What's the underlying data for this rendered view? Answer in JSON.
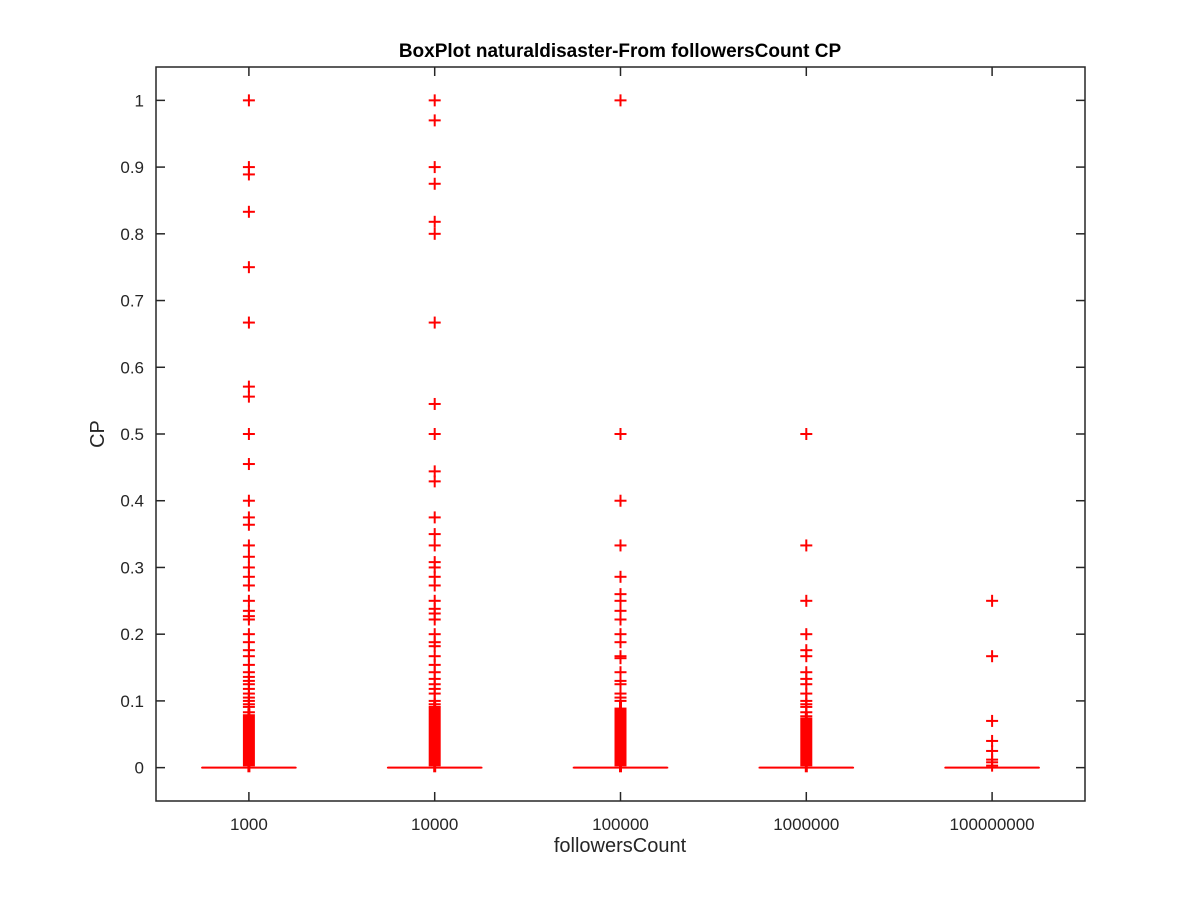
{
  "chart_data": {
    "type": "boxplot",
    "title": "BoxPlot naturaldisaster-From followersCount CP",
    "xlabel": "followersCount",
    "ylabel": "CP",
    "categories": [
      "1000",
      "10000",
      "100000",
      "1000000",
      "100000000"
    ],
    "ylim": [
      -0.05,
      1.05
    ],
    "yticks": [
      0,
      0.1,
      0.2,
      0.3,
      0.4,
      0.5,
      0.6,
      0.7,
      0.8,
      0.9,
      1
    ],
    "ytick_labels": [
      "0",
      "0.1",
      "0.2",
      "0.3",
      "0.4",
      "0.5",
      "0.6",
      "0.7",
      "0.8",
      "0.9",
      "1"
    ],
    "grid": false,
    "box_color": "#ff0000",
    "outlier_color": "#ff0000",
    "boxes": [
      {
        "category": "1000",
        "q1": 0,
        "median": 0,
        "q3": 0,
        "whisker_low": 0,
        "whisker_high": 0,
        "outliers": [
          1,
          0.9,
          0.889,
          0.833,
          0.75,
          0.667,
          0.571,
          0.556,
          0.5,
          0.455,
          0.4,
          0.375,
          0.364,
          0.333,
          0.316,
          0.3,
          0.286,
          0.273,
          0.25,
          0.235,
          0.227,
          0.222,
          0.2,
          0.188,
          0.176,
          0.167,
          0.154,
          0.143,
          0.136,
          0.13,
          0.125,
          0.118,
          0.111,
          0.105,
          0.1,
          0.095,
          0.091,
          0.083
        ],
        "outlier_dense_range": [
          0.002,
          0.08
        ]
      },
      {
        "category": "10000",
        "q1": 0,
        "median": 0,
        "q3": 0,
        "whisker_low": 0,
        "whisker_high": 0,
        "outliers": [
          1,
          0.97,
          0.9,
          0.875,
          0.818,
          0.8,
          0.667,
          0.545,
          0.5,
          0.444,
          0.429,
          0.375,
          0.35,
          0.333,
          0.308,
          0.3,
          0.286,
          0.273,
          0.25,
          0.238,
          0.231,
          0.222,
          0.2,
          0.188,
          0.182,
          0.167,
          0.154,
          0.143,
          0.133,
          0.125,
          0.118,
          0.111,
          0.1,
          0.095,
          0.091
        ],
        "outlier_dense_range": [
          0.002,
          0.09
        ]
      },
      {
        "category": "100000",
        "q1": 0,
        "median": 0,
        "q3": 0,
        "whisker_low": 0,
        "whisker_high": 0,
        "outliers": [
          1,
          0.5,
          0.4,
          0.333,
          0.286,
          0.26,
          0.25,
          0.235,
          0.222,
          0.2,
          0.188,
          0.167,
          0.164,
          0.143,
          0.13,
          0.125,
          0.111,
          0.105,
          0.1
        ],
        "outlier_dense_range": [
          0.002,
          0.09
        ]
      },
      {
        "category": "1000000",
        "q1": 0,
        "median": 0,
        "q3": 0,
        "whisker_low": 0,
        "whisker_high": 0,
        "outliers": [
          0.5,
          0.333,
          0.25,
          0.2,
          0.176,
          0.167,
          0.143,
          0.133,
          0.125,
          0.111,
          0.1,
          0.095,
          0.091,
          0.083,
          0.077
        ],
        "outlier_dense_range": [
          0.002,
          0.075
        ]
      },
      {
        "category": "100000000",
        "q1": 0,
        "median": 0,
        "q3": 0,
        "whisker_low": 0,
        "whisker_high": 0,
        "outliers": [
          0.25,
          0.167,
          0.07,
          0.04,
          0.025,
          0.012,
          0.008,
          0.003
        ],
        "outlier_dense_range": null
      }
    ]
  }
}
